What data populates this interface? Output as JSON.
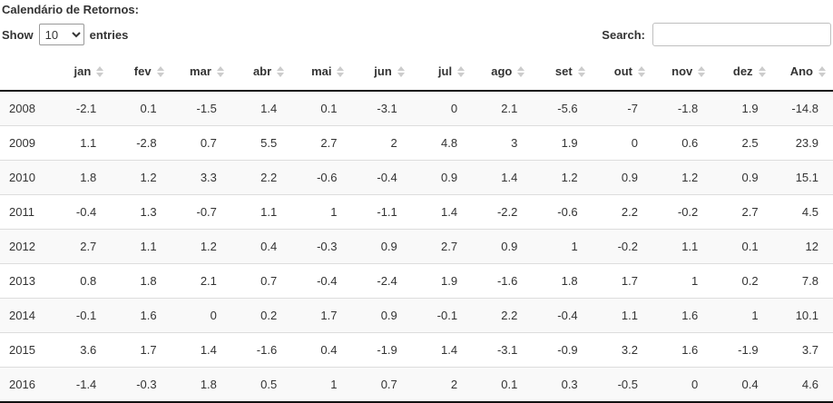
{
  "page": {
    "title": "Calendário de Retornos:"
  },
  "controls": {
    "show_label": "Show",
    "entries_label": "entries",
    "page_length": "10",
    "search_label": "Search:",
    "search_value": ""
  },
  "colors": {
    "header_border": "#111111",
    "row_stripe": "#f9f9f9",
    "row_divider": "#dddddd",
    "sort_icon": "#cccccc",
    "text": "#333333"
  },
  "table": {
    "columns": [
      "jan",
      "fev",
      "mar",
      "abr",
      "mai",
      "jun",
      "jul",
      "ago",
      "set",
      "out",
      "nov",
      "dez",
      "Ano"
    ],
    "rows": [
      {
        "year": "2008",
        "values": [
          "-2.1",
          "0.1",
          "-1.5",
          "1.4",
          "0.1",
          "-3.1",
          "0",
          "2.1",
          "-5.6",
          "-7",
          "-1.8",
          "1.9",
          "-14.8"
        ]
      },
      {
        "year": "2009",
        "values": [
          "1.1",
          "-2.8",
          "0.7",
          "5.5",
          "2.7",
          "2",
          "4.8",
          "3",
          "1.9",
          "0",
          "0.6",
          "2.5",
          "23.9"
        ]
      },
      {
        "year": "2010",
        "values": [
          "1.8",
          "1.2",
          "3.3",
          "2.2",
          "-0.6",
          "-0.4",
          "0.9",
          "1.4",
          "1.2",
          "0.9",
          "1.2",
          "0.9",
          "15.1"
        ]
      },
      {
        "year": "2011",
        "values": [
          "-0.4",
          "1.3",
          "-0.7",
          "1.1",
          "1",
          "-1.1",
          "1.4",
          "-2.2",
          "-0.6",
          "2.2",
          "-0.2",
          "2.7",
          "4.5"
        ]
      },
      {
        "year": "2012",
        "values": [
          "2.7",
          "1.1",
          "1.2",
          "0.4",
          "-0.3",
          "0.9",
          "2.7",
          "0.9",
          "1",
          "-0.2",
          "1.1",
          "0.1",
          "12"
        ]
      },
      {
        "year": "2013",
        "values": [
          "0.8",
          "1.8",
          "2.1",
          "0.7",
          "-0.4",
          "-2.4",
          "1.9",
          "-1.6",
          "1.8",
          "1.7",
          "1",
          "0.2",
          "7.8"
        ]
      },
      {
        "year": "2014",
        "values": [
          "-0.1",
          "1.6",
          "0",
          "0.2",
          "1.7",
          "0.9",
          "-0.1",
          "2.2",
          "-0.4",
          "1.1",
          "1.6",
          "1",
          "10.1"
        ]
      },
      {
        "year": "2015",
        "values": [
          "3.6",
          "1.7",
          "1.4",
          "-1.6",
          "0.4",
          "-1.9",
          "1.4",
          "-3.1",
          "-0.9",
          "3.2",
          "1.6",
          "-1.9",
          "3.7"
        ]
      },
      {
        "year": "2016",
        "values": [
          "-1.4",
          "-0.3",
          "1.8",
          "0.5",
          "1",
          "0.7",
          "2",
          "0.1",
          "0.3",
          "-0.5",
          "0",
          "0.4",
          "4.6"
        ]
      }
    ]
  }
}
